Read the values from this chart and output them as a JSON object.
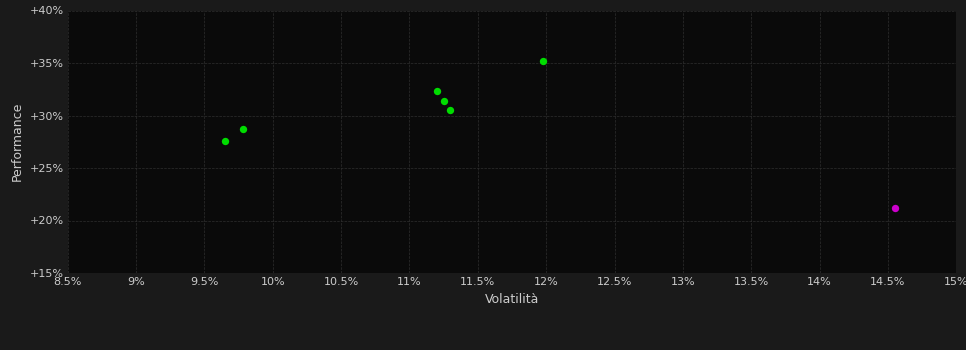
{
  "background_color": "#1a1a1a",
  "plot_bg_color": "#0a0a0a",
  "grid_color": "#2e2e2e",
  "text_color": "#cccccc",
  "xlabel": "Volatilità",
  "ylabel": "Performance",
  "xlim": [
    0.085,
    0.15
  ],
  "ylim": [
    0.15,
    0.4
  ],
  "xticks": [
    0.085,
    0.09,
    0.095,
    0.1,
    0.105,
    0.11,
    0.115,
    0.12,
    0.125,
    0.13,
    0.135,
    0.14,
    0.145,
    0.15
  ],
  "xtick_labels": [
    "8.5%",
    "9%",
    "9.5%",
    "10%",
    "10.5%",
    "11%",
    "11.5%",
    "12%",
    "12.5%",
    "13%",
    "13.5%",
    "14%",
    "14.5%",
    "15%"
  ],
  "yticks": [
    0.15,
    0.2,
    0.25,
    0.3,
    0.35,
    0.4
  ],
  "ytick_labels": [
    "+15%",
    "+20%",
    "+25%",
    "+30%",
    "+35%",
    "+40%"
  ],
  "green_points": [
    [
      0.0978,
      0.287
    ],
    [
      0.0965,
      0.276
    ],
    [
      0.112,
      0.323
    ],
    [
      0.1125,
      0.314
    ],
    [
      0.113,
      0.305
    ],
    [
      0.1198,
      0.352
    ]
  ],
  "magenta_points": [
    [
      0.1455,
      0.212
    ]
  ],
  "green_color": "#00dd00",
  "magenta_color": "#cc00cc",
  "marker_size": 28
}
